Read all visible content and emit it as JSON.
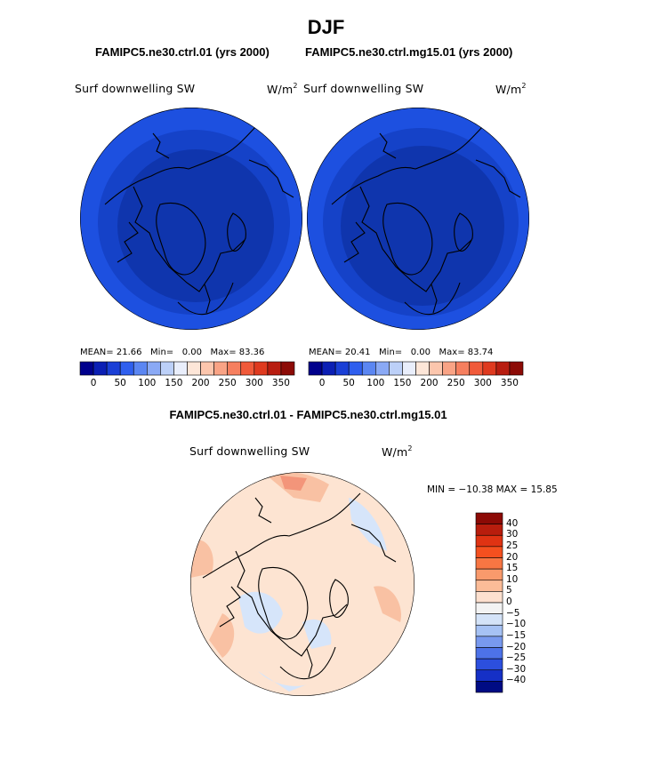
{
  "title": "DJF",
  "panels": [
    {
      "case": "FAMIPC5.ne30.ctrl.01 (yrs 2000)",
      "variable": "Surf downwelling SW",
      "units_base": "W/m",
      "units_exp": "2",
      "mean_label": "MEAN=",
      "mean": "21.66",
      "min_label": "Min=",
      "min": "0.00",
      "max_label": "Max=",
      "max": "83.36"
    },
    {
      "case": "FAMIPC5.ne30.ctrl.mg15.01 (yrs 2000)",
      "variable": "Surf downwelling SW",
      "units_base": "W/m",
      "units_exp": "2",
      "mean_label": "MEAN=",
      "mean": "20.41",
      "min_label": "Min=",
      "min": "0.00",
      "max_label": "Max=",
      "max": "83.74"
    }
  ],
  "difference": {
    "title": "FAMIPC5.ne30.ctrl.01 - FAMIPC5.ne30.ctrl.mg15.01",
    "variable": "Surf downwelling SW",
    "units_base": "W/m",
    "units_exp": "2",
    "minmax_text": "MIN = −10.38 MAX =   15.85"
  },
  "chart_data": [
    {
      "type": "heatmap",
      "title": "FAMIPC5.ne30.ctrl.01 (yrs 2000)",
      "variable": "Surf downwelling SW",
      "units": "W/m2",
      "projection": "north polar stereographic",
      "stats": {
        "mean": 21.66,
        "min": 0.0,
        "max": 83.36
      },
      "colorbar_ticks": [
        "0",
        "50",
        "100",
        "150",
        "200",
        "250",
        "300",
        "350"
      ],
      "colorbar_colors": [
        "#00008c",
        "#0b1fb4",
        "#1a3fd6",
        "#2f5fee",
        "#5b86f2",
        "#8aa9f5",
        "#bcd0f8",
        "#e9eefb",
        "#fde6d8",
        "#fcc6ad",
        "#f9a385",
        "#f67f5f",
        "#f05a3a",
        "#df3a1f",
        "#b81d10",
        "#8c0b06"
      ],
      "fill_colors": {
        "outer": "#1d50e0",
        "mid": "#1542c8",
        "inner": "#0f35ad"
      }
    },
    {
      "type": "heatmap",
      "title": "FAMIPC5.ne30.ctrl.mg15.01 (yrs 2000)",
      "variable": "Surf downwelling SW",
      "units": "W/m2",
      "projection": "north polar stereographic",
      "stats": {
        "mean": 20.41,
        "min": 0.0,
        "max": 83.74
      },
      "colorbar_ticks": [
        "0",
        "50",
        "100",
        "150",
        "200",
        "250",
        "300",
        "350"
      ],
      "colorbar_colors": [
        "#00008c",
        "#0b1fb4",
        "#1a3fd6",
        "#2f5fee",
        "#5b86f2",
        "#8aa9f5",
        "#bcd0f8",
        "#e9eefb",
        "#fde6d8",
        "#fcc6ad",
        "#f9a385",
        "#f67f5f",
        "#f05a3a",
        "#df3a1f",
        "#b81d10",
        "#8c0b06"
      ],
      "fill_colors": {
        "outer": "#1d50e0",
        "mid": "#1542c8",
        "inner": "#0f35ad"
      }
    },
    {
      "type": "heatmap",
      "title": "FAMIPC5.ne30.ctrl.01 - FAMIPC5.ne30.ctrl.mg15.01",
      "variable": "Surf downwelling SW",
      "units": "W/m2",
      "projection": "north polar stereographic",
      "stats": {
        "min": -10.38,
        "max": 15.85
      },
      "colorbar_ticks": [
        "40",
        "30",
        "25",
        "20",
        "15",
        "10",
        "5",
        "0",
        "−5",
        "−10",
        "−15",
        "−20",
        "−25",
        "−30",
        "−40"
      ],
      "colorbar_colors": [
        "#8c0a05",
        "#b81d0d",
        "#df3313",
        "#f4501f",
        "#f77643",
        "#f99a6c",
        "#fbbc98",
        "#fde0cf",
        "#f3f3f3",
        "#d4e3f8",
        "#a6c2f4",
        "#7899ee",
        "#4d72e8",
        "#2c4fde",
        "#1530c6",
        "#000b84"
      ],
      "fill_colors": {
        "background": "#fde4d2",
        "warm_patch": "#f9b898",
        "cool_patch": "#d6e5fa"
      }
    }
  ]
}
